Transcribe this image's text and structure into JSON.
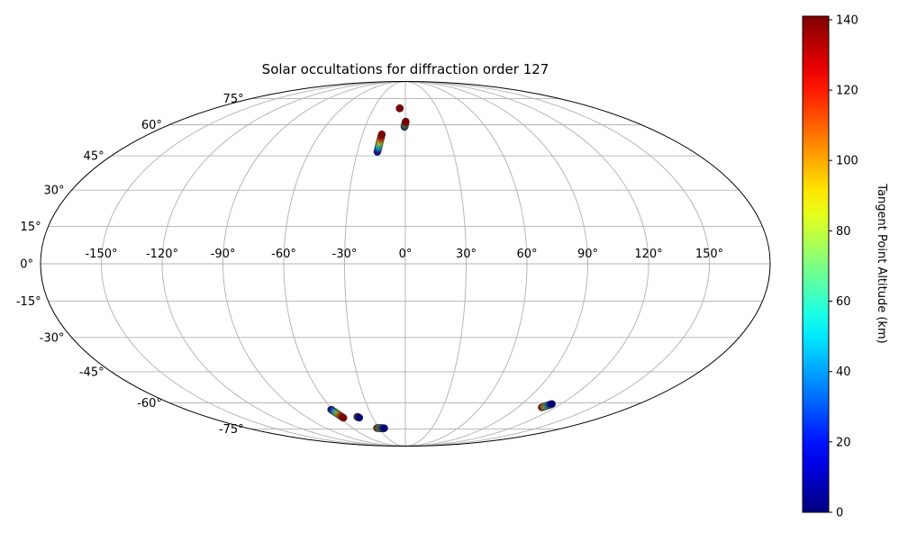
{
  "chart_data": {
    "type": "scatter",
    "projection": "mollweide",
    "title": "Solar occultations for diffraction order 127",
    "grid": true,
    "longitude_ticks": [
      "-150°",
      "-120°",
      "-90°",
      "-60°",
      "-30°",
      "0°",
      "30°",
      "60°",
      "90°",
      "120°",
      "150°"
    ],
    "longitude_values": [
      -150,
      -120,
      -90,
      -60,
      -30,
      0,
      30,
      60,
      90,
      120,
      150
    ],
    "latitude_ticks": [
      "-75°",
      "-60°",
      "-45°",
      "-30°",
      "-15°",
      "0°",
      "15°",
      "30°",
      "45°",
      "60°",
      "75°"
    ],
    "latitude_values": [
      -75,
      -60,
      -45,
      -30,
      -15,
      0,
      15,
      30,
      45,
      60,
      75
    ],
    "colorbar": {
      "label": "Tangent Point Altitude (km)",
      "colormap": "jet",
      "min": 0,
      "max": 141,
      "ticks": [
        "0",
        "20",
        "40",
        "60",
        "80",
        "100",
        "120",
        "140"
      ],
      "tick_values": [
        0,
        20,
        40,
        60,
        80,
        100,
        120,
        140
      ]
    },
    "tracks": [
      {
        "lon_start": -17.5,
        "lat_start": 46.8,
        "alt_start": 0,
        "lon_end": -16.5,
        "lat_end": 55.2,
        "alt_end": 141
      },
      {
        "lon_start": -0.7,
        "lat_start": 58.9,
        "alt_start": 0,
        "lon_end": 0.3,
        "lat_end": 61.7,
        "alt_end": 141
      },
      {
        "lon_start": -5.3,
        "lat_start": 69.0,
        "alt_start": 141,
        "lon_end": -5.3,
        "lat_end": 69.0,
        "alt_end": 141
      },
      {
        "lon_start": -61.0,
        "lat_start": -63.6,
        "alt_start": 0,
        "lon_end": -57.1,
        "lat_end": -68.2,
        "alt_end": 141
      },
      {
        "lon_start": -43.6,
        "lat_start": -67.6,
        "alt_start": 0,
        "lon_end": -42.4,
        "lat_end": -68.1,
        "alt_end": 0
      },
      {
        "lon_start": -32.3,
        "lat_start": -74.4,
        "alt_start": 141,
        "lon_end": -24.1,
        "lat_end": -74.5,
        "alt_end": 0
      },
      {
        "lon_start": 109.1,
        "lat_start": -62.4,
        "alt_start": 141,
        "lon_end": 113.1,
        "lat_end": -60.6,
        "alt_end": 0
      }
    ]
  }
}
